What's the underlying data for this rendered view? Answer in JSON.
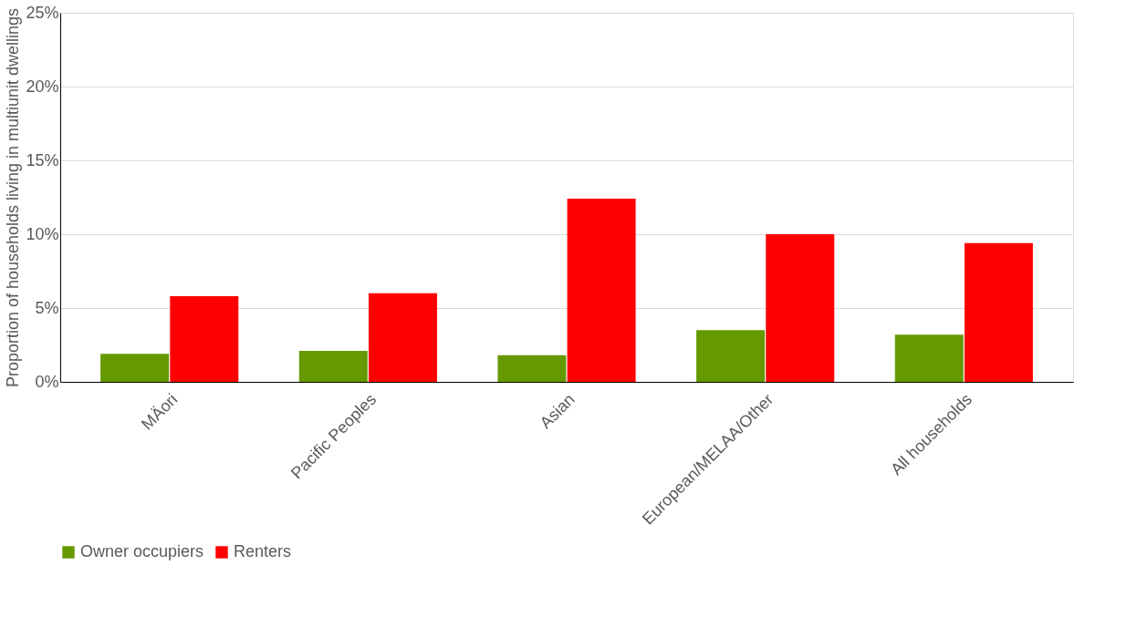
{
  "chart_data": {
    "type": "bar",
    "ylabel": "Proportion of households living in multiunit dwellings",
    "categories": [
      "MÄori",
      "Pacific Peoples",
      "Asian",
      "European/MELAA/Other",
      "All households"
    ],
    "series": [
      {
        "name": "Owner occupiers",
        "color": "#669900",
        "values": [
          1.9,
          2.1,
          1.8,
          3.5,
          3.2
        ]
      },
      {
        "name": "Renters",
        "color": "#ff0000",
        "values": [
          5.8,
          6.0,
          12.4,
          10.0,
          9.4
        ]
      }
    ],
    "ylim": [
      0,
      25
    ],
    "yticks": [
      {
        "value": 0,
        "label": "0%"
      },
      {
        "value": 5,
        "label": "5%"
      },
      {
        "value": 10,
        "label": "10%"
      },
      {
        "value": 15,
        "label": "15%"
      },
      {
        "value": 20,
        "label": "20%"
      },
      {
        "value": 25,
        "label": "25%"
      }
    ],
    "grid": "y",
    "legend": "bottom"
  }
}
